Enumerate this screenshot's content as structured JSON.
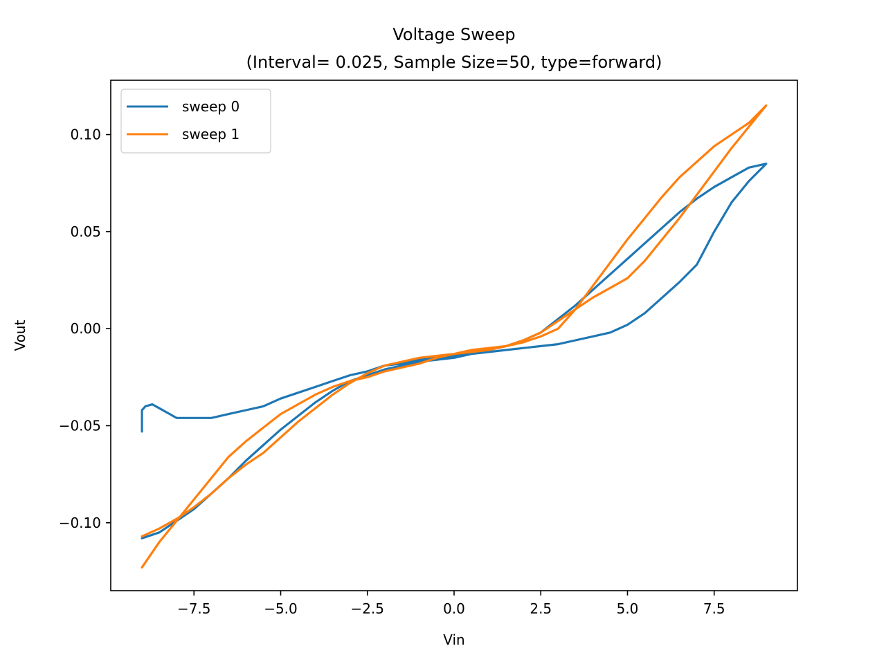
{
  "chart_data": {
    "type": "line",
    "title": "Voltage Sweep",
    "subtitle": "(Interval= 0.025, Sample Size=50, type=forward)",
    "xlabel": "Vin",
    "ylabel": "Vout",
    "xlim": [
      -9.9,
      9.9
    ],
    "ylim": [
      -0.135,
      0.128
    ],
    "x_ticks": [
      -7.5,
      -5.0,
      -2.5,
      0.0,
      2.5,
      5.0,
      7.5
    ],
    "x_tick_labels": [
      "−7.5",
      "−5.0",
      "−2.5",
      "0.0",
      "2.5",
      "5.0",
      "7.5"
    ],
    "y_ticks": [
      -0.1,
      -0.05,
      0.0,
      0.05,
      0.1
    ],
    "y_tick_labels": [
      "−0.10",
      "−0.05",
      "0.00",
      "0.05",
      "0.10"
    ],
    "grid": false,
    "legend_position": "upper-left",
    "series": [
      {
        "name": "sweep 0",
        "color": "#1f77b4",
        "x": [
          -9.0,
          -9.0,
          -8.9,
          -8.7,
          -8.5,
          -8.2,
          -8.0,
          -7.5,
          -7.0,
          -6.5,
          -6.0,
          -5.5,
          -5.0,
          -4.5,
          -4.0,
          -3.5,
          -3.0,
          -2.5,
          -2.0,
          -1.5,
          -1.0,
          -0.5,
          0.0,
          0.5,
          1.0,
          1.5,
          2.0,
          2.5,
          3.0,
          3.5,
          4.0,
          4.5,
          5.0,
          5.5,
          6.0,
          6.5,
          7.0,
          7.5,
          8.0,
          8.5,
          9.0,
          8.5,
          8.0,
          7.5,
          7.0,
          6.5,
          6.0,
          5.5,
          5.0,
          4.5,
          4.0,
          3.5,
          3.0,
          2.5,
          2.0,
          1.5,
          1.0,
          0.5,
          0.0,
          -0.5,
          -1.0,
          -1.5,
          -2.0,
          -2.5,
          -3.0,
          -3.5,
          -4.0,
          -4.5,
          -5.0,
          -5.5,
          -6.0,
          -6.5,
          -7.0,
          -7.5,
          -8.0,
          -8.5,
          -9.0
        ],
        "y": [
          -0.053,
          -0.042,
          -0.04,
          -0.039,
          -0.041,
          -0.044,
          -0.046,
          -0.046,
          -0.046,
          -0.044,
          -0.042,
          -0.04,
          -0.036,
          -0.033,
          -0.03,
          -0.027,
          -0.024,
          -0.022,
          -0.019,
          -0.018,
          -0.016,
          -0.015,
          -0.014,
          -0.013,
          -0.011,
          -0.009,
          -0.006,
          -0.002,
          0.005,
          0.012,
          0.02,
          0.028,
          0.036,
          0.044,
          0.052,
          0.06,
          0.067,
          0.073,
          0.078,
          0.083,
          0.085,
          0.076,
          0.065,
          0.05,
          0.033,
          0.024,
          0.016,
          0.008,
          0.002,
          -0.002,
          -0.004,
          -0.006,
          -0.008,
          -0.009,
          -0.01,
          -0.011,
          -0.012,
          -0.013,
          -0.015,
          -0.016,
          -0.017,
          -0.019,
          -0.021,
          -0.024,
          -0.027,
          -0.032,
          -0.038,
          -0.045,
          -0.052,
          -0.06,
          -0.068,
          -0.077,
          -0.085,
          -0.093,
          -0.099,
          -0.105,
          -0.108
        ]
      },
      {
        "name": "sweep 1",
        "color": "#ff7f0e",
        "x": [
          -9.0,
          -8.5,
          -8.0,
          -7.5,
          -7.0,
          -6.5,
          -6.0,
          -5.5,
          -5.0,
          -4.5,
          -4.0,
          -3.5,
          -3.0,
          -2.5,
          -2.0,
          -1.5,
          -1.0,
          -0.5,
          0.0,
          0.5,
          1.0,
          1.5,
          2.0,
          2.5,
          3.0,
          3.5,
          4.0,
          4.5,
          5.0,
          5.5,
          6.0,
          6.5,
          7.0,
          7.5,
          8.0,
          8.5,
          9.0,
          8.5,
          8.0,
          7.5,
          7.0,
          6.5,
          6.0,
          5.5,
          5.0,
          4.5,
          4.0,
          3.5,
          3.0,
          2.5,
          2.0,
          1.5,
          1.0,
          0.5,
          0.0,
          -0.5,
          -1.0,
          -1.5,
          -2.0,
          -2.5,
          -3.0,
          -3.5,
          -4.0,
          -4.5,
          -5.0,
          -5.5,
          -6.0,
          -6.5,
          -7.0,
          -7.5,
          -8.0,
          -8.5,
          -9.0
        ],
        "y": [
          -0.107,
          -0.103,
          -0.098,
          -0.092,
          -0.085,
          -0.077,
          -0.07,
          -0.064,
          -0.056,
          -0.048,
          -0.041,
          -0.034,
          -0.028,
          -0.023,
          -0.019,
          -0.017,
          -0.015,
          -0.014,
          -0.013,
          -0.012,
          -0.011,
          -0.009,
          -0.006,
          -0.002,
          0.004,
          0.01,
          0.016,
          0.021,
          0.026,
          0.035,
          0.046,
          0.057,
          0.069,
          0.081,
          0.093,
          0.104,
          0.115,
          0.106,
          0.1,
          0.094,
          0.086,
          0.078,
          0.068,
          0.057,
          0.046,
          0.034,
          0.022,
          0.01,
          0.0,
          -0.004,
          -0.007,
          -0.009,
          -0.01,
          -0.011,
          -0.013,
          -0.015,
          -0.018,
          -0.02,
          -0.022,
          -0.025,
          -0.027,
          -0.03,
          -0.034,
          -0.039,
          -0.044,
          -0.051,
          -0.058,
          -0.066,
          -0.077,
          -0.088,
          -0.099,
          -0.11,
          -0.123
        ]
      }
    ]
  }
}
